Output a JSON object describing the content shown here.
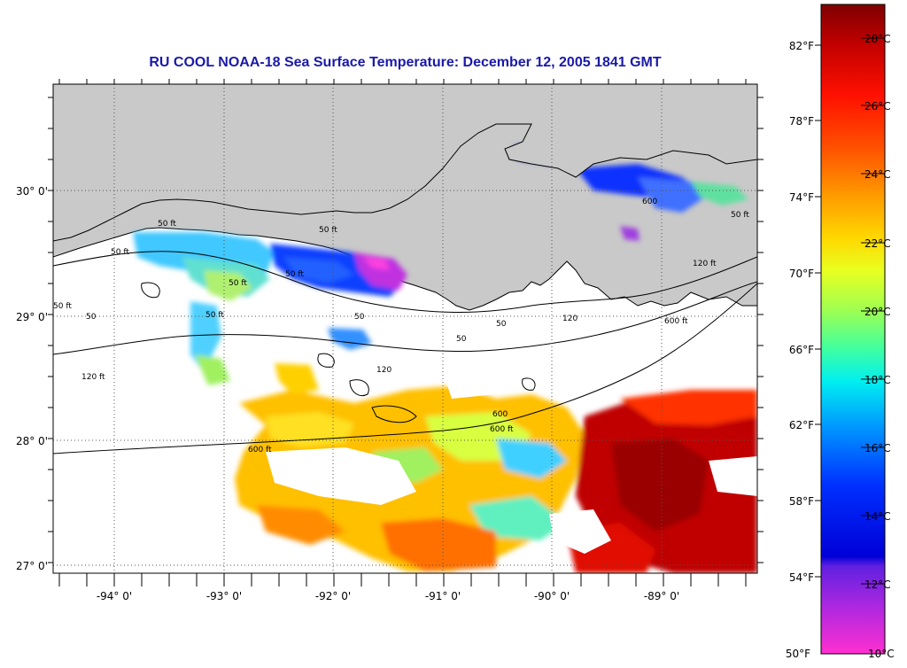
{
  "title": "RU COOL  NOAA-18  Sea Surface Temperature:  December 12, 2005 1841 GMT",
  "map": {
    "lat_labels": [
      {
        "lat": 30,
        "label": "30° 0'"
      },
      {
        "lat": 29,
        "label": "29° 0'"
      },
      {
        "lat": 28,
        "label": "28° 0'"
      },
      {
        "lat": 27,
        "label": "27° 0'"
      }
    ],
    "lon_labels": [
      {
        "lon": -94,
        "label": "-94° 0'"
      },
      {
        "lon": -93,
        "label": "-93° 0'"
      },
      {
        "lon": -92,
        "label": "-92° 0'"
      },
      {
        "lon": -91,
        "label": "-91° 0'"
      },
      {
        "lon": -90,
        "label": "-90° 0'"
      },
      {
        "lon": -89,
        "label": "-89° 0'"
      }
    ],
    "contour_labels": [
      {
        "text": "50 ft"
      },
      {
        "text": "50 ft"
      },
      {
        "text": "50 ft"
      },
      {
        "text": "50 ft"
      },
      {
        "text": "50 ft"
      },
      {
        "text": "50 ft"
      },
      {
        "text": "50"
      },
      {
        "text": "50"
      },
      {
        "text": "50"
      },
      {
        "text": "50"
      },
      {
        "text": "120 ft"
      },
      {
        "text": "120"
      },
      {
        "text": "120"
      },
      {
        "text": "120 ft"
      },
      {
        "text": "600 ft"
      },
      {
        "text": "600 ft"
      },
      {
        "text": "600"
      },
      {
        "text": "600 ft"
      },
      {
        "text": "600"
      },
      {
        "text": "50 ft"
      },
      {
        "text": "50 ft"
      }
    ],
    "colors": {
      "land": "#c9c9c9",
      "water_nodata": "#ffffff",
      "grid": "#555555",
      "title": "#1a1aa8"
    }
  },
  "colorbar": {
    "fahrenheit_labels": [
      "82°F",
      "78°F",
      "74°F",
      "70°F",
      "66°F",
      "62°F",
      "58°F",
      "54°F",
      "50°F"
    ],
    "celsius_labels": [
      "28°C",
      "26°C",
      "24°C",
      "22°C",
      "20°C",
      "18°C",
      "16°C",
      "14°C",
      "12°C",
      "10°C"
    ],
    "gradient_stops": [
      "#7f0000",
      "#d40000",
      "#ff2000",
      "#ff6a00",
      "#ffb000",
      "#ffe800",
      "#c8ff30",
      "#60ff90",
      "#00f0f0",
      "#0090ff",
      "#0030ff",
      "#0000d0",
      "#8020e0",
      "#ff30d0"
    ]
  }
}
